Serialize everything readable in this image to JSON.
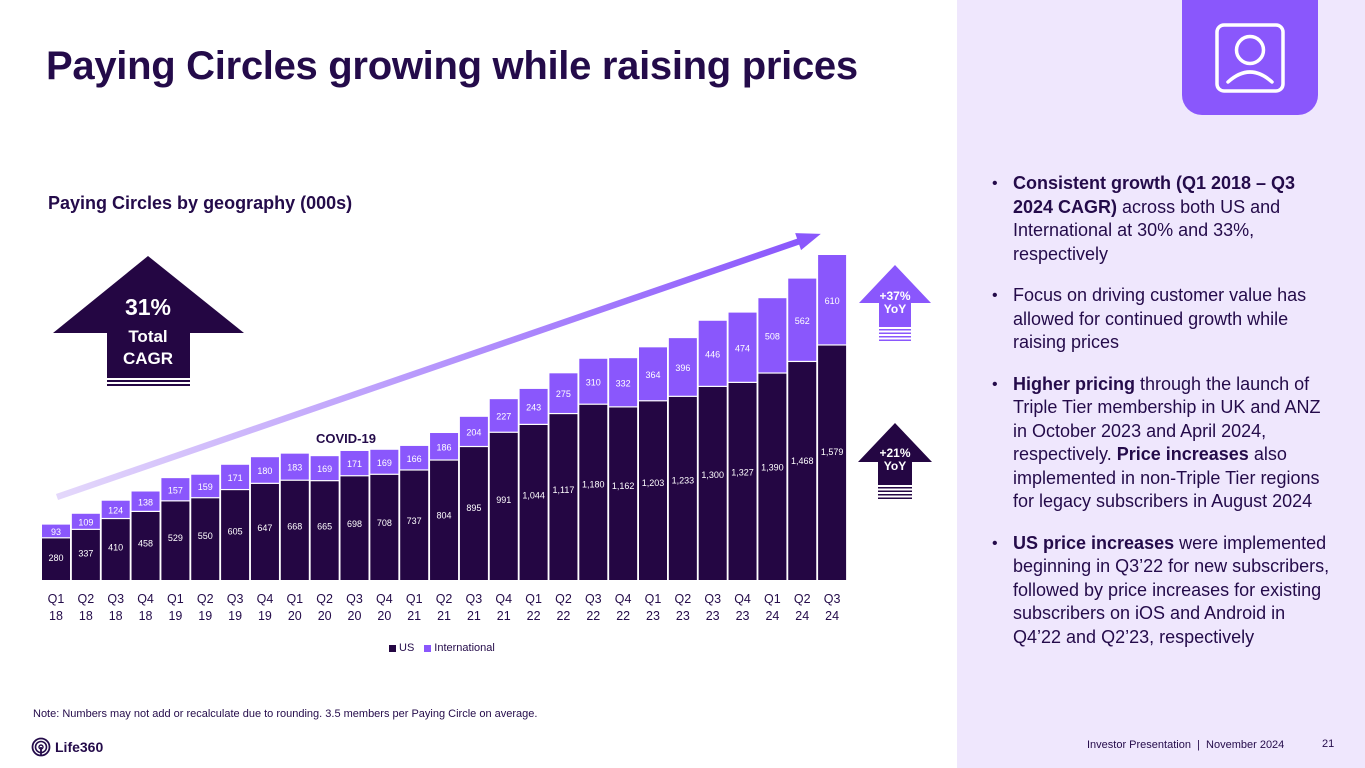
{
  "header": {
    "title": "Paying Circles growing while raising prices"
  },
  "icon_tile": {
    "icon": "user-profile-icon"
  },
  "colors": {
    "us": "#240643",
    "international": "#8a57fc",
    "dark_text": "#240b4a",
    "panel_bg": "#efe7fd",
    "trend_arrow_start": "#e4d8fb",
    "trend_arrow_end": "#8a57fc"
  },
  "callouts": {
    "cagr": {
      "value": "31%",
      "line1": "Total",
      "line2": "CAGR"
    },
    "international_yoy": {
      "value": "+37%",
      "label": "YoY"
    },
    "us_yoy": {
      "value": "+21%",
      "label": "YoY"
    },
    "covid_label": "COVID-19"
  },
  "chart_data": {
    "type": "bar",
    "stacked": true,
    "title": "Paying Circles by geography (000s)",
    "xlabel": "",
    "ylabel": "",
    "categories": [
      "Q1 18",
      "Q2 18",
      "Q3 18",
      "Q4 18",
      "Q1 19",
      "Q2 19",
      "Q3 19",
      "Q4 19",
      "Q1 20",
      "Q2 20",
      "Q3 20",
      "Q4 20",
      "Q1 21",
      "Q2 21",
      "Q3 21",
      "Q4 21",
      "Q1 22",
      "Q2 22",
      "Q3 22",
      "Q4 22",
      "Q1 23",
      "Q2 23",
      "Q3 23",
      "Q4 23",
      "Q1 24",
      "Q2 24",
      "Q3 24"
    ],
    "category_lines": [
      [
        "Q1",
        "18"
      ],
      [
        "Q2",
        "18"
      ],
      [
        "Q3",
        "18"
      ],
      [
        "Q4",
        "18"
      ],
      [
        "Q1",
        "19"
      ],
      [
        "Q2",
        "19"
      ],
      [
        "Q3",
        "19"
      ],
      [
        "Q4",
        "19"
      ],
      [
        "Q1",
        "20"
      ],
      [
        "Q2",
        "20"
      ],
      [
        "Q3",
        "20"
      ],
      [
        "Q4",
        "20"
      ],
      [
        "Q1",
        "21"
      ],
      [
        "Q2",
        "21"
      ],
      [
        "Q3",
        "21"
      ],
      [
        "Q4",
        "21"
      ],
      [
        "Q1",
        "22"
      ],
      [
        "Q2",
        "22"
      ],
      [
        "Q3",
        "22"
      ],
      [
        "Q4",
        "22"
      ],
      [
        "Q1",
        "23"
      ],
      [
        "Q2",
        "23"
      ],
      [
        "Q3",
        "23"
      ],
      [
        "Q4",
        "23"
      ],
      [
        "Q1",
        "24"
      ],
      [
        "Q2",
        "24"
      ],
      [
        "Q3",
        "24"
      ]
    ],
    "series": [
      {
        "name": "US",
        "values": [
          280,
          337,
          410,
          458,
          529,
          550,
          605,
          647,
          668,
          665,
          698,
          708,
          737,
          804,
          895,
          991,
          1044,
          1117,
          1180,
          1162,
          1203,
          1233,
          1300,
          1327,
          1390,
          1468,
          1579
        ]
      },
      {
        "name": "International",
        "values": [
          93,
          109,
          124,
          138,
          157,
          159,
          171,
          180,
          183,
          169,
          171,
          169,
          166,
          186,
          204,
          227,
          243,
          275,
          310,
          332,
          364,
          396,
          446,
          474,
          508,
          562,
          610
        ]
      }
    ],
    "ylim": [
      0,
      2189
    ],
    "grid": false,
    "legend": {
      "position": "bottom-center",
      "entries": [
        "US",
        "International"
      ]
    },
    "annotations": [
      "31% Total CAGR",
      "+37% YoY",
      "+21% YoY",
      "COVID-19"
    ]
  },
  "bullets": [
    {
      "bold": "Consistent growth (Q1 2018 – Q3 2024 CAGR)",
      "text": " across both US and International at 30% and 33%, respectively"
    },
    {
      "bold": "",
      "text": "Focus on driving customer value has allowed for continued growth while raising prices"
    },
    {
      "bold": "Higher pricing",
      "text": " through the launch of Triple Tier membership in UK and ANZ in October 2023 and April 2024, respectively. ",
      "bold2": "Price increases",
      "text2": " also implemented in non-Triple Tier regions for legacy subscribers in August 2024"
    },
    {
      "bold": "US price increases",
      "text": " were implemented beginning in Q3’22 for new subscribers, followed by price increases for existing subscribers on iOS and Android in Q4’22 and Q2’23, respectively"
    }
  ],
  "bullet_char": "•",
  "note": "Note: Numbers may not add or recalculate due to rounding. 3.5 members per Paying Circle on average.",
  "logo": {
    "text": "Life360"
  },
  "footer": {
    "text": "Investor Presentation  |  November 2024",
    "page_number": "21"
  }
}
